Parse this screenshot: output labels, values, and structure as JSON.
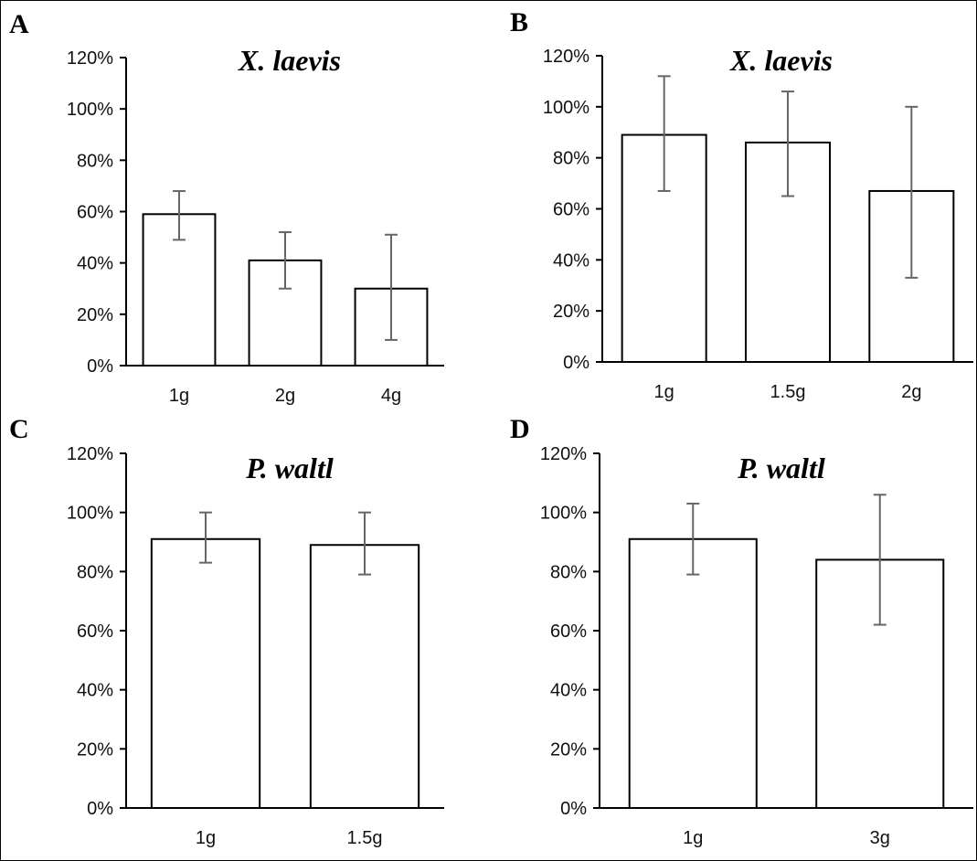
{
  "chart_data": [
    {
      "panel": "A",
      "type": "bar",
      "title": "X. laevis",
      "categories": [
        "1g",
        "2g",
        "4g"
      ],
      "values": [
        59,
        41,
        30
      ],
      "error_low": [
        49,
        30,
        10
      ],
      "error_high": [
        68,
        52,
        51
      ],
      "ylim": [
        0,
        120
      ],
      "yticks": [
        "0%",
        "20%",
        "40%",
        "60%",
        "80%",
        "100%",
        "120%"
      ],
      "grid": false
    },
    {
      "panel": "B",
      "type": "bar",
      "title": "X. laevis",
      "categories": [
        "1g",
        "1.5g",
        "2g"
      ],
      "values": [
        89,
        86,
        67
      ],
      "error_low": [
        67,
        65,
        33
      ],
      "error_high": [
        112,
        106,
        100
      ],
      "ylim": [
        0,
        120
      ],
      "yticks": [
        "0%",
        "20%",
        "40%",
        "60%",
        "80%",
        "100%",
        "120%"
      ],
      "grid": false
    },
    {
      "panel": "C",
      "type": "bar",
      "title": "P. waltl",
      "categories": [
        "1g",
        "1.5g"
      ],
      "values": [
        91,
        89
      ],
      "error_low": [
        83,
        79
      ],
      "error_high": [
        100,
        100
      ],
      "ylim": [
        0,
        120
      ],
      "yticks": [
        "0%",
        "20%",
        "40%",
        "60%",
        "80%",
        "100%",
        "120%"
      ],
      "grid": false
    },
    {
      "panel": "D",
      "type": "bar",
      "title": "P. waltl",
      "categories": [
        "1g",
        "3g"
      ],
      "values": [
        91,
        84
      ],
      "error_low": [
        79,
        62
      ],
      "error_high": [
        103,
        106
      ],
      "ylim": [
        0,
        120
      ],
      "yticks": [
        "0%",
        "20%",
        "40%",
        "60%",
        "80%",
        "100%",
        "120%"
      ],
      "grid": false
    }
  ]
}
